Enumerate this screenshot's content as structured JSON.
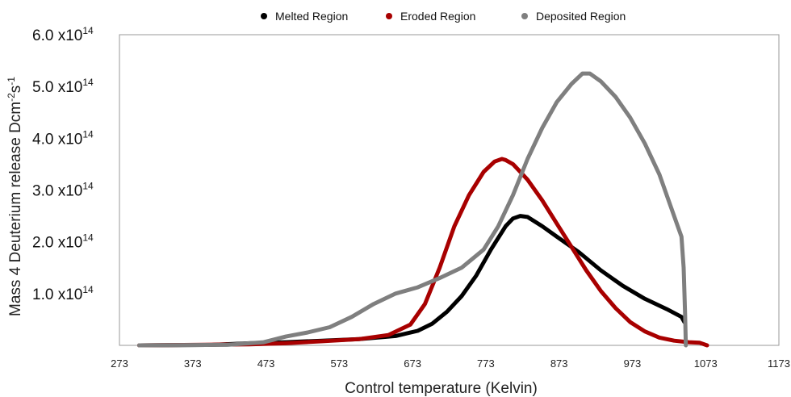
{
  "chart_data": {
    "type": "line",
    "xlabel": "Control temperature (Kelvin)",
    "ylabel": "Mass 4 Deuterium release Dcm",
    "ylabel_sup1": "-2",
    "ylabel_mid": "s",
    "ylabel_sup2": "-1",
    "xlim": [
      273,
      1173
    ],
    "ylim": [
      0,
      6.0
    ],
    "x_ticks": [
      "273",
      "373",
      "473",
      "573",
      "673",
      "773",
      "873",
      "973",
      "1073",
      "1173"
    ],
    "y_ticks": [
      {
        "value": 1.0,
        "base": "1.0 x10",
        "exp": "14"
      },
      {
        "value": 2.0,
        "base": "2.0 x10",
        "exp": "14"
      },
      {
        "value": 3.0,
        "base": "3.0 x10",
        "exp": "14"
      },
      {
        "value": 4.0,
        "base": "4.0 x10",
        "exp": "14"
      },
      {
        "value": 5.0,
        "base": "5.0 x10",
        "exp": "14"
      },
      {
        "value": 6.0,
        "base": "6.0 x10",
        "exp": "14"
      }
    ],
    "legend_position": "top",
    "series": [
      {
        "name": "Melted Region",
        "color": "#000000",
        "x": [
          300,
          400,
          450,
          500,
          550,
          600,
          650,
          680,
          700,
          720,
          740,
          760,
          780,
          800,
          810,
          820,
          830,
          850,
          870,
          900,
          930,
          960,
          990,
          1020,
          1040,
          1044
        ],
        "y": [
          0,
          0.01,
          0.04,
          0.06,
          0.09,
          0.12,
          0.18,
          0.28,
          0.42,
          0.65,
          0.95,
          1.35,
          1.85,
          2.3,
          2.45,
          2.5,
          2.48,
          2.3,
          2.1,
          1.8,
          1.45,
          1.15,
          0.9,
          0.7,
          0.55,
          0.45
        ]
      },
      {
        "name": "Eroded Region",
        "color": "#a80000",
        "x": [
          300,
          450,
          500,
          550,
          600,
          640,
          670,
          690,
          710,
          730,
          750,
          770,
          785,
          795,
          800,
          810,
          820,
          830,
          850,
          870,
          890,
          910,
          930,
          950,
          970,
          990,
          1010,
          1030,
          1050,
          1065,
          1075
        ],
        "y": [
          0,
          0.02,
          0.04,
          0.08,
          0.12,
          0.2,
          0.4,
          0.8,
          1.5,
          2.3,
          2.9,
          3.35,
          3.55,
          3.6,
          3.58,
          3.5,
          3.35,
          3.2,
          2.8,
          2.35,
          1.9,
          1.45,
          1.05,
          0.72,
          0.45,
          0.27,
          0.15,
          0.09,
          0.06,
          0.05,
          0.0
        ]
      },
      {
        "name": "Deposited Region",
        "color": "#7f7f7f",
        "x": [
          300,
          420,
          470,
          500,
          530,
          560,
          590,
          620,
          650,
          680,
          710,
          740,
          770,
          790,
          810,
          830,
          850,
          870,
          890,
          905,
          915,
          930,
          950,
          970,
          990,
          1010,
          1025,
          1035,
          1040,
          1043,
          1045,
          1046
        ],
        "y": [
          0,
          0.01,
          0.06,
          0.17,
          0.25,
          0.35,
          0.55,
          0.8,
          1.0,
          1.12,
          1.3,
          1.5,
          1.85,
          2.3,
          2.9,
          3.6,
          4.2,
          4.7,
          5.05,
          5.25,
          5.25,
          5.1,
          4.8,
          4.4,
          3.9,
          3.3,
          2.7,
          2.3,
          2.1,
          1.5,
          0.6,
          0.0
        ]
      }
    ]
  }
}
